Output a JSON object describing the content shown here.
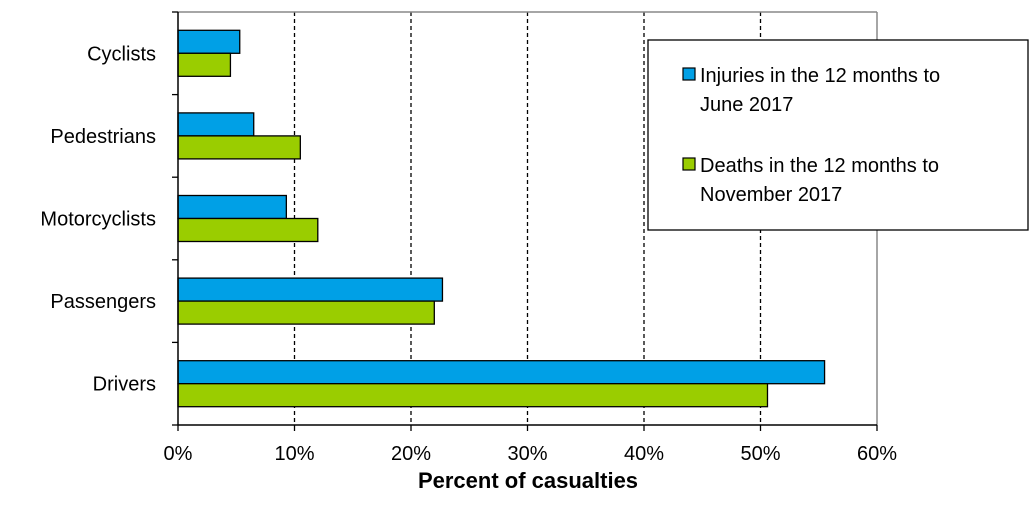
{
  "chart_data": {
    "type": "bar",
    "orientation": "horizontal",
    "categories": [
      "Cyclists",
      "Pedestrians",
      "Motorcyclists",
      "Passengers",
      "Drivers"
    ],
    "series": [
      {
        "name": "Injuries in the 12 months to June 2017",
        "legend_lines": [
          "Injuries in the 12 months to",
          "June 2017"
        ],
        "color": "#00A0E6",
        "values": [
          5.3,
          6.5,
          9.3,
          22.7,
          55.5
        ]
      },
      {
        "name": "Deaths in the 12 months to November 2017",
        "legend_lines": [
          "Deaths in the 12 months to",
          "November 2017"
        ],
        "color": "#9ACD00",
        "values": [
          4.5,
          10.5,
          12.0,
          22.0,
          50.6
        ]
      }
    ],
    "xlabel": "Percent of casualties",
    "xlim": [
      0,
      60
    ],
    "xticks": [
      0,
      10,
      20,
      30,
      40,
      50,
      60
    ],
    "xtick_labels": [
      "0%",
      "10%",
      "20%",
      "30%",
      "40%",
      "50%",
      "60%"
    ],
    "grid": "vertical dashed",
    "legend_position": "top-right"
  }
}
